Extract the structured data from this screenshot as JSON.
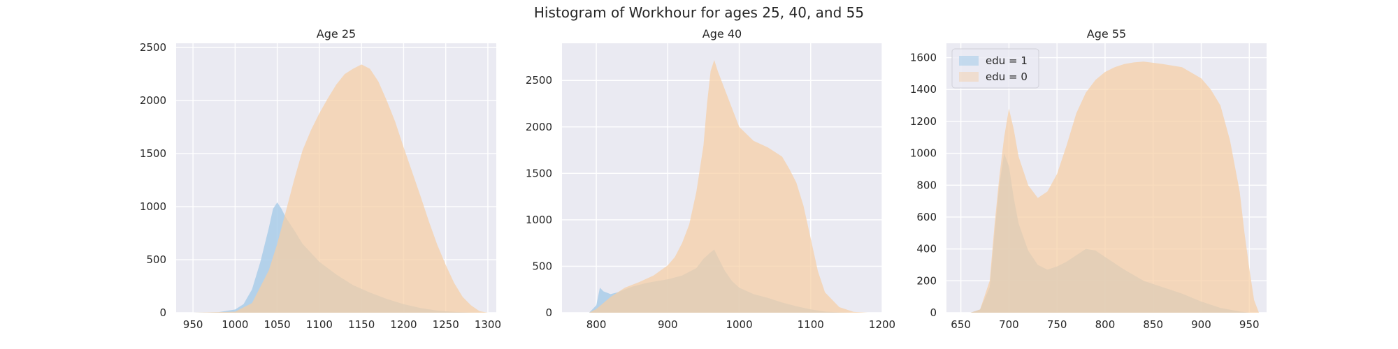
{
  "figure": {
    "title": "Histogram of Workhour for ages 25, 40, and 55"
  },
  "colors": {
    "edu1": "#a9cde9",
    "edu0": "#f6cfa3",
    "bg": "#eaeaf2",
    "grid": "#ffffff",
    "text": "#262626"
  },
  "chart_data": [
    {
      "type": "area",
      "title": "Age 25",
      "xlabel": "",
      "ylabel": "",
      "xlim": [
        930,
        1310
      ],
      "ylim": [
        0,
        2540
      ],
      "xticks": [
        950,
        1000,
        1050,
        1100,
        1150,
        1200,
        1250,
        1300
      ],
      "yticks": [
        0,
        500,
        1000,
        1500,
        2000,
        2500
      ],
      "legend": null,
      "series": [
        {
          "name": "edu = 1",
          "x": [
            950,
            980,
            1000,
            1010,
            1020,
            1030,
            1040,
            1045,
            1050,
            1055,
            1060,
            1070,
            1080,
            1100,
            1120,
            1140,
            1160,
            1180,
            1200,
            1220,
            1240,
            1260,
            1280,
            1300
          ],
          "values": [
            0,
            5,
            30,
            80,
            220,
            480,
            800,
            980,
            1040,
            980,
            900,
            780,
            650,
            480,
            360,
            260,
            190,
            130,
            80,
            45,
            20,
            8,
            2,
            0
          ]
        },
        {
          "name": "edu = 0",
          "x": [
            950,
            1000,
            1020,
            1040,
            1050,
            1060,
            1070,
            1080,
            1090,
            1100,
            1110,
            1120,
            1130,
            1140,
            1150,
            1160,
            1170,
            1180,
            1190,
            1200,
            1210,
            1220,
            1230,
            1240,
            1250,
            1260,
            1270,
            1280,
            1290,
            1300
          ],
          "values": [
            0,
            10,
            90,
            400,
            650,
            950,
            1250,
            1530,
            1720,
            1880,
            2020,
            2150,
            2250,
            2300,
            2340,
            2300,
            2180,
            2000,
            1800,
            1560,
            1330,
            1100,
            860,
            640,
            450,
            280,
            150,
            70,
            15,
            0
          ]
        }
      ]
    },
    {
      "type": "area",
      "title": "Age 40",
      "xlabel": "",
      "ylabel": "",
      "xlim": [
        752,
        1200
      ],
      "ylim": [
        0,
        2900
      ],
      "xticks": [
        800,
        900,
        1000,
        1100,
        1200
      ],
      "yticks": [
        0,
        500,
        1000,
        1500,
        2000,
        2500
      ],
      "legend": null,
      "series": [
        {
          "name": "edu = 1",
          "x": [
            790,
            800,
            805,
            810,
            820,
            830,
            850,
            870,
            900,
            920,
            940,
            950,
            960,
            965,
            970,
            980,
            990,
            1000,
            1020,
            1040,
            1060,
            1080,
            1100,
            1120,
            1140,
            1160
          ],
          "values": [
            0,
            80,
            270,
            230,
            200,
            220,
            280,
            320,
            360,
            400,
            480,
            580,
            650,
            680,
            600,
            450,
            340,
            270,
            200,
            160,
            110,
            70,
            35,
            12,
            4,
            0
          ]
        },
        {
          "name": "edu = 0",
          "x": [
            790,
            800,
            820,
            840,
            860,
            880,
            900,
            910,
            920,
            930,
            940,
            950,
            955,
            960,
            965,
            970,
            980,
            990,
            1000,
            1020,
            1040,
            1060,
            1070,
            1080,
            1090,
            1100,
            1110,
            1120,
            1140,
            1160,
            1180
          ],
          "values": [
            0,
            40,
            170,
            270,
            330,
            400,
            510,
            600,
            750,
            950,
            1300,
            1800,
            2250,
            2600,
            2720,
            2600,
            2400,
            2200,
            2000,
            1850,
            1780,
            1680,
            1550,
            1400,
            1150,
            800,
            450,
            220,
            60,
            10,
            0
          ]
        }
      ]
    },
    {
      "type": "area",
      "title": "Age 55",
      "xlabel": "",
      "ylabel": "",
      "xlim": [
        635,
        968
      ],
      "ylim": [
        0,
        1690
      ],
      "xticks": [
        650,
        700,
        750,
        800,
        850,
        900,
        950
      ],
      "yticks": [
        0,
        200,
        400,
        600,
        800,
        1000,
        1200,
        1400,
        1600
      ],
      "legend": "upper left",
      "series": [
        {
          "name": "edu = 1",
          "x": [
            660,
            670,
            680,
            685,
            690,
            695,
            700,
            705,
            710,
            720,
            730,
            740,
            750,
            760,
            770,
            780,
            790,
            800,
            810,
            820,
            840,
            860,
            880,
            900,
            920,
            940,
            950
          ],
          "values": [
            0,
            20,
            160,
            500,
            800,
            1000,
            920,
            720,
            560,
            390,
            300,
            270,
            290,
            320,
            360,
            400,
            390,
            350,
            310,
            270,
            200,
            160,
            120,
            70,
            30,
            8,
            0
          ]
        },
        {
          "name": "edu = 0",
          "x": [
            660,
            670,
            680,
            685,
            690,
            695,
            700,
            705,
            710,
            720,
            730,
            740,
            750,
            760,
            770,
            780,
            790,
            800,
            810,
            820,
            830,
            840,
            860,
            880,
            900,
            910,
            920,
            930,
            940,
            945,
            950,
            955,
            960
          ],
          "values": [
            0,
            20,
            200,
            550,
            850,
            1100,
            1280,
            1150,
            980,
            800,
            720,
            760,
            870,
            1050,
            1250,
            1380,
            1460,
            1510,
            1540,
            1560,
            1570,
            1575,
            1560,
            1540,
            1470,
            1400,
            1300,
            1080,
            760,
            500,
            280,
            80,
            0
          ]
        }
      ]
    }
  ]
}
